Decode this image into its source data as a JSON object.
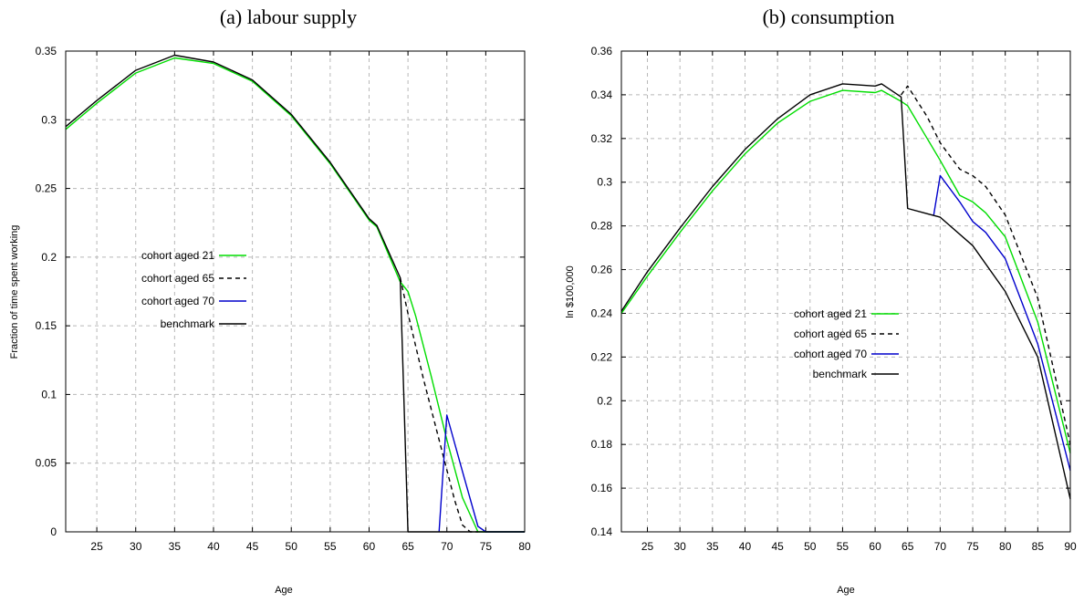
{
  "chart_data": [
    {
      "type": "line",
      "title": "(a) labour supply",
      "xlabel": "Age",
      "ylabel": "Fraction of time spent working",
      "xlim": [
        21,
        80
      ],
      "ylim": [
        0,
        0.35
      ],
      "xticks": [
        25,
        30,
        35,
        40,
        45,
        50,
        55,
        60,
        65,
        70,
        75,
        80
      ],
      "yticks": [
        0,
        0.05,
        0.1,
        0.15,
        0.2,
        0.25,
        0.3,
        0.35
      ],
      "ytick_labels": [
        "0",
        "0.05",
        "0.1",
        "0.15",
        "0.2",
        "0.25",
        "0.3",
        "0.35"
      ],
      "grid": true,
      "legend_position": "middle-left",
      "series": [
        {
          "name": "cohort aged 21",
          "color": "#00dd00",
          "dash": "solid",
          "x": [
            21,
            25,
            30,
            35,
            40,
            45,
            50,
            55,
            60,
            61,
            64,
            65,
            66,
            68,
            70,
            72,
            74,
            75,
            80
          ],
          "y": [
            0.293,
            0.312,
            0.334,
            0.345,
            0.341,
            0.328,
            0.303,
            0.268,
            0.227,
            0.222,
            0.182,
            0.175,
            0.157,
            0.113,
            0.067,
            0.025,
            0.0,
            0.0,
            0.0
          ]
        },
        {
          "name": "cohort aged 65",
          "color": "#000000",
          "dash": "dashed",
          "x": [
            64,
            65,
            67,
            69,
            71,
            72,
            73,
            74
          ],
          "y": [
            0.185,
            0.159,
            0.111,
            0.067,
            0.023,
            0.005,
            0.0,
            0.0
          ]
        },
        {
          "name": "cohort aged 70",
          "color": "#0000cc",
          "dash": "solid",
          "x": [
            69,
            70,
            72,
            74,
            75,
            80
          ],
          "y": [
            0.0,
            0.085,
            0.044,
            0.004,
            0.0,
            0.0
          ]
        },
        {
          "name": "benchmark",
          "color": "#000000",
          "dash": "solid",
          "x": [
            21,
            25,
            30,
            35,
            40,
            45,
            50,
            55,
            60,
            61,
            64,
            65,
            80
          ],
          "y": [
            0.295,
            0.314,
            0.336,
            0.347,
            0.342,
            0.329,
            0.304,
            0.269,
            0.228,
            0.223,
            0.185,
            0.0,
            0.0
          ]
        }
      ]
    },
    {
      "type": "line",
      "title": "(b) consumption",
      "xlabel": "Age",
      "ylabel": "ln $100,000",
      "xlim": [
        21,
        90
      ],
      "ylim": [
        0.14,
        0.36
      ],
      "xticks": [
        25,
        30,
        35,
        40,
        45,
        50,
        55,
        60,
        65,
        70,
        75,
        80,
        85,
        90
      ],
      "yticks": [
        0.14,
        0.16,
        0.18,
        0.2,
        0.22,
        0.24,
        0.26,
        0.28,
        0.3,
        0.32,
        0.34,
        0.36
      ],
      "ytick_labels": [
        "0.14",
        "0.16",
        "0.18",
        "0.2",
        "0.22",
        "0.24",
        "0.26",
        "0.28",
        "0.3",
        "0.32",
        "0.34",
        "0.36"
      ],
      "grid": true,
      "legend_position": "center",
      "series": [
        {
          "name": "cohort aged 21",
          "color": "#00dd00",
          "dash": "solid",
          "x": [
            21,
            25,
            30,
            35,
            40,
            45,
            50,
            55,
            60,
            61,
            64,
            65,
            70,
            73,
            75,
            77,
            80,
            85,
            90
          ],
          "y": [
            0.24,
            0.257,
            0.277,
            0.296,
            0.313,
            0.327,
            0.337,
            0.342,
            0.341,
            0.342,
            0.337,
            0.335,
            0.31,
            0.294,
            0.291,
            0.286,
            0.275,
            0.236,
            0.176
          ]
        },
        {
          "name": "cohort aged 65",
          "color": "#000000",
          "dash": "dashed",
          "x": [
            64,
            65,
            68,
            70,
            73,
            75,
            77,
            80,
            85,
            90
          ],
          "y": [
            0.34,
            0.344,
            0.33,
            0.318,
            0.306,
            0.303,
            0.298,
            0.285,
            0.247,
            0.18
          ]
        },
        {
          "name": "cohort aged 70",
          "color": "#0000cc",
          "dash": "solid",
          "x": [
            69,
            70,
            73,
            75,
            77,
            80,
            85,
            90
          ],
          "y": [
            0.285,
            0.303,
            0.291,
            0.282,
            0.277,
            0.265,
            0.226,
            0.168
          ]
        },
        {
          "name": "benchmark",
          "color": "#000000",
          "dash": "solid",
          "x": [
            21,
            25,
            30,
            35,
            40,
            45,
            50,
            55,
            60,
            61,
            64,
            65,
            70,
            75,
            80,
            85,
            90
          ],
          "y": [
            0.241,
            0.259,
            0.279,
            0.298,
            0.315,
            0.329,
            0.34,
            0.345,
            0.344,
            0.345,
            0.339,
            0.288,
            0.284,
            0.271,
            0.25,
            0.22,
            0.155
          ]
        }
      ]
    }
  ]
}
